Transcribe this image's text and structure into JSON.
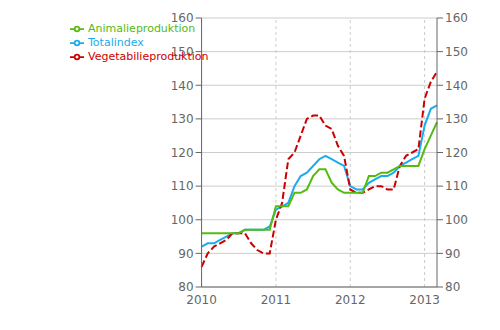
{
  "chart_data": {
    "type": "line",
    "categories": [
      "2010",
      null,
      null,
      null,
      null,
      null,
      null,
      null,
      null,
      null,
      null,
      null,
      "2011",
      null,
      null,
      null,
      null,
      null,
      null,
      null,
      null,
      null,
      null,
      null,
      "2012",
      null,
      null,
      null,
      null,
      null,
      null,
      null,
      null,
      null,
      null,
      null,
      "2013",
      null,
      null
    ],
    "series": [
      {
        "name": "Totalindex",
        "color": "#1AACEE",
        "line_style": "solid",
        "values": [
          92,
          93,
          93,
          94,
          95,
          96,
          96,
          97,
          97,
          97,
          97,
          98,
          103,
          104,
          105,
          110,
          113,
          114,
          116,
          118,
          119,
          118,
          117,
          116,
          110,
          109,
          109,
          111,
          112,
          113,
          113,
          114,
          116,
          117,
          118,
          119,
          128,
          133,
          134
        ]
      },
      {
        "name": "Vegetabilieproduktion",
        "color": "#CC0000",
        "line_style": "dashed",
        "values": [
          86,
          90,
          92,
          93,
          94,
          96,
          96,
          96,
          93,
          91,
          90,
          90,
          100,
          105,
          118,
          120,
          125,
          130,
          131,
          131,
          128,
          127,
          122,
          119,
          109,
          108,
          108,
          109,
          110,
          110,
          109,
          109,
          116,
          119,
          120,
          121,
          136,
          141,
          144
        ]
      },
      {
        "name": "Animalieproduktion",
        "color": "#55BB11",
        "line_style": "solid",
        "values": [
          96,
          96,
          96,
          96,
          96,
          96,
          96,
          97,
          97,
          97,
          97,
          97,
          104,
          104,
          104,
          108,
          108,
          109,
          113,
          115,
          115,
          111,
          109,
          108,
          108,
          108,
          108,
          113,
          113,
          114,
          114,
          115,
          116,
          116,
          116,
          116,
          121,
          125,
          129
        ]
      }
    ],
    "ylim": [
      80,
      160
    ],
    "yticks": [
      80,
      90,
      100,
      110,
      120,
      130,
      140,
      150,
      160
    ],
    "y2lim": [
      80,
      160
    ],
    "y2ticks": [
      80,
      90,
      100,
      110,
      120,
      130,
      140,
      150,
      160
    ],
    "grid": true,
    "legend": "upper left"
  }
}
